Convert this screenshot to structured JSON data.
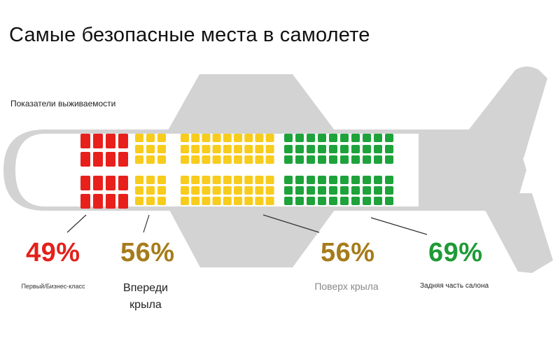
{
  "title": "Самые безопасные места в самолете",
  "subtitle": "Показатели выживаемости",
  "colors": {
    "red": "#e8201c",
    "yellow": "#f7cc1c",
    "green": "#1ea33b",
    "gray": "#d3d3d3",
    "pct_red": "#e3211c",
    "pct_gold": "#a67c1b",
    "pct_green": "#1e9a36"
  },
  "sections": [
    {
      "percent": "49%",
      "label": "Первый/Бизнес-класс"
    },
    {
      "percent": "56%",
      "label_line1": "Впереди",
      "label_line2": "крыла"
    },
    {
      "percent": "56%",
      "label": "Поверх крыла"
    },
    {
      "percent": "69%",
      "label": "Задняя часть салона"
    }
  ]
}
